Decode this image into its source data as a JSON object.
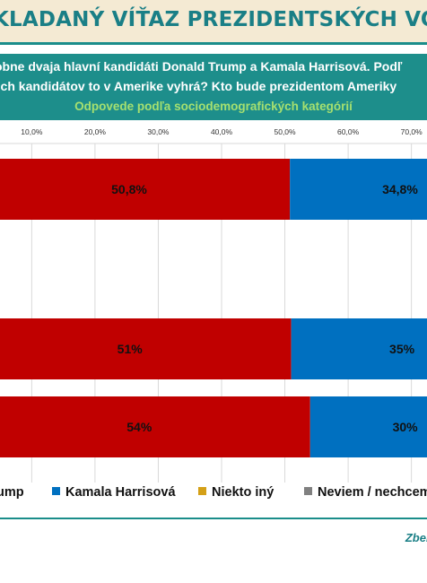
{
  "header": {
    "title": "KLADANÝ VÍŤAZ PREZIDENTSKÝCH VOLIEB",
    "question_line1": "obne dvaja hlavní kandidáti Donald Trump a Kamala Harrisová. Podľ",
    "question_line2": "och kandidátov to v Amerike vyhrá? Kto bude prezidentom Ameriky",
    "subtitle": "Odpovede podľa sociodemografických kategórií"
  },
  "footer": {
    "source_text": "Zber"
  },
  "colors": {
    "trump": "#c00000",
    "harris": "#0070c0",
    "other": "#d4a017",
    "dont_know": "#808080",
    "accent": "#1a8d8a"
  },
  "chart_data": {
    "type": "bar",
    "orientation": "horizontal",
    "stacked": true,
    "x_ticks": [
      "10,0%",
      "20,0%",
      "30,0%",
      "40,0%",
      "50,0%",
      "60,0%",
      "70,0%"
    ],
    "xlim": [
      0,
      70
    ],
    "grid": true,
    "legend_position": "bottom",
    "series": [
      {
        "name": "Donald Trump",
        "values": [
          50.8,
          null,
          51,
          54
        ],
        "labels": [
          "50,8%",
          "",
          "51%",
          "54%"
        ]
      },
      {
        "name": "Kamala Harrisová",
        "values": [
          34.8,
          null,
          35,
          30
        ],
        "labels": [
          "34,8%",
          "",
          "35%",
          "30%"
        ]
      },
      {
        "name": "Niekto iný",
        "values": [
          null,
          null,
          null,
          null
        ],
        "labels": [
          "",
          "",
          "",
          ""
        ]
      },
      {
        "name": "Neviem / nechcem",
        "values": [
          null,
          null,
          null,
          null
        ],
        "labels": [
          "",
          "",
          "",
          ""
        ]
      }
    ],
    "legend_labels": [
      "ump",
      "Kamala Harrisová",
      "Niekto iný",
      "Neviem / nechcem"
    ]
  }
}
